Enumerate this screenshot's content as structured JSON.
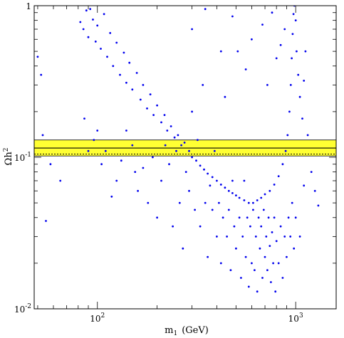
{
  "chart_data": {
    "type": "scatter",
    "title": "",
    "xlabel": "m",
    "xlabel_sub": "1",
    "xlabel_unit": "(GeV)",
    "ylabel": "Ωh",
    "ylabel_sup": "2",
    "x_scale": "log",
    "y_scale": "log",
    "xlim": [
      48,
      1600
    ],
    "ylim": [
      0.01,
      1
    ],
    "grid": false,
    "legend": "none",
    "x_ticks": [
      {
        "value": 100,
        "base": "10",
        "exp": "2"
      },
      {
        "value": 1000,
        "base": "10",
        "exp": "3"
      }
    ],
    "y_ticks": [
      {
        "value": 0.01,
        "base": "10",
        "exp": "-2"
      },
      {
        "value": 0.1,
        "base": "10",
        "exp": "-1"
      },
      {
        "value": 1,
        "base": "1",
        "exp": ""
      }
    ],
    "band": {
      "y_low": 0.102,
      "y_high": 0.13,
      "solid_line": 0.115,
      "dotted_line": 0.105,
      "color": "#ffff33"
    },
    "point_color": "#0000ee",
    "series": [
      {
        "points": [
          [
            50,
            0.46
          ],
          [
            52,
            0.35
          ],
          [
            53,
            0.14
          ],
          [
            55,
            0.038
          ],
          [
            58,
            0.09
          ],
          [
            65,
            0.07
          ],
          [
            82,
            0.78
          ],
          [
            85,
            0.7
          ],
          [
            88,
            0.93
          ],
          [
            90,
            0.62
          ],
          [
            92,
            0.95
          ],
          [
            95,
            0.81
          ],
          [
            98,
            0.58
          ],
          [
            100,
            0.74
          ],
          [
            104,
            0.52
          ],
          [
            108,
            0.88
          ],
          [
            112,
            0.46
          ],
          [
            116,
            0.66
          ],
          [
            120,
            0.4
          ],
          [
            125,
            0.57
          ],
          [
            130,
            0.35
          ],
          [
            136,
            0.49
          ],
          [
            140,
            0.31
          ],
          [
            145,
            0.42
          ],
          [
            150,
            0.28
          ],
          [
            158,
            0.36
          ],
          [
            165,
            0.24
          ],
          [
            170,
            0.3
          ],
          [
            178,
            0.21
          ],
          [
            185,
            0.26
          ],
          [
            192,
            0.19
          ],
          [
            200,
            0.22
          ],
          [
            210,
            0.17
          ],
          [
            218,
            0.19
          ],
          [
            225,
            0.15
          ],
          [
            235,
            0.16
          ],
          [
            245,
            0.135
          ],
          [
            255,
            0.14
          ],
          [
            265,
            0.12
          ],
          [
            275,
            0.125
          ],
          [
            290,
            0.11
          ],
          [
            300,
            0.1
          ],
          [
            315,
            0.095
          ],
          [
            330,
            0.088
          ],
          [
            345,
            0.083
          ],
          [
            360,
            0.078
          ],
          [
            380,
            0.074
          ],
          [
            400,
            0.07
          ],
          [
            420,
            0.066
          ],
          [
            440,
            0.063
          ],
          [
            460,
            0.06
          ],
          [
            480,
            0.058
          ],
          [
            500,
            0.056
          ],
          [
            520,
            0.054
          ],
          [
            550,
            0.052
          ],
          [
            580,
            0.05
          ],
          [
            610,
            0.05
          ],
          [
            640,
            0.052
          ],
          [
            670,
            0.054
          ],
          [
            700,
            0.057
          ],
          [
            740,
            0.06
          ],
          [
            780,
            0.066
          ],
          [
            820,
            0.075
          ],
          [
            860,
            0.09
          ],
          [
            890,
            0.11
          ],
          [
            910,
            0.14
          ],
          [
            930,
            0.2
          ],
          [
            945,
            0.3
          ],
          [
            955,
            0.45
          ],
          [
            965,
            0.65
          ],
          [
            975,
            0.88
          ],
          [
            985,
            1.0
          ],
          [
            1000,
            0.8
          ],
          [
            1010,
            0.5
          ],
          [
            1030,
            0.35
          ],
          [
            1050,
            0.25
          ],
          [
            1080,
            0.18
          ],
          [
            1100,
            0.32
          ],
          [
            1120,
            0.5
          ],
          [
            1150,
            0.14
          ],
          [
            1200,
            0.08
          ],
          [
            1250,
            0.06
          ],
          [
            1300,
            0.048
          ],
          [
            160,
            0.06
          ],
          [
            170,
            0.085
          ],
          [
            180,
            0.05
          ],
          [
            190,
            0.1
          ],
          [
            200,
            0.04
          ],
          [
            210,
            0.07
          ],
          [
            220,
            0.12
          ],
          [
            230,
            0.09
          ],
          [
            240,
            0.035
          ],
          [
            250,
            0.11
          ],
          [
            260,
            0.05
          ],
          [
            270,
            0.025
          ],
          [
            280,
            0.08
          ],
          [
            290,
            0.06
          ],
          [
            300,
            0.2
          ],
          [
            310,
            0.045
          ],
          [
            320,
            0.13
          ],
          [
            330,
            0.035
          ],
          [
            340,
            0.3
          ],
          [
            350,
            0.05
          ],
          [
            360,
            0.022
          ],
          [
            370,
            0.065
          ],
          [
            380,
            0.045
          ],
          [
            390,
            0.11
          ],
          [
            400,
            0.03
          ],
          [
            410,
            0.05
          ],
          [
            420,
            0.02
          ],
          [
            430,
            0.04
          ],
          [
            440,
            0.25
          ],
          [
            450,
            0.03
          ],
          [
            460,
            0.045
          ],
          [
            470,
            0.018
          ],
          [
            480,
            0.07
          ],
          [
            490,
            0.035
          ],
          [
            500,
            0.025
          ],
          [
            510,
            0.5
          ],
          [
            520,
            0.04
          ],
          [
            530,
            0.016
          ],
          [
            540,
            0.03
          ],
          [
            550,
            0.07
          ],
          [
            560,
            0.022
          ],
          [
            570,
            0.04
          ],
          [
            580,
            0.014
          ],
          [
            590,
            0.035
          ],
          [
            600,
            0.02
          ],
          [
            610,
            0.045
          ],
          [
            620,
            0.018
          ],
          [
            630,
            0.03
          ],
          [
            640,
            0.013
          ],
          [
            650,
            0.04
          ],
          [
            660,
            0.025
          ],
          [
            670,
            0.035
          ],
          [
            680,
            0.016
          ],
          [
            690,
            0.045
          ],
          [
            700,
            0.022
          ],
          [
            710,
            0.03
          ],
          [
            720,
            0.018
          ],
          [
            730,
            0.04
          ],
          [
            740,
            0.026
          ],
          [
            750,
            0.015
          ],
          [
            760,
            0.032
          ],
          [
            770,
            0.02
          ],
          [
            780,
            0.04
          ],
          [
            790,
            0.013
          ],
          [
            800,
            0.028
          ],
          [
            820,
            0.02
          ],
          [
            840,
            0.035
          ],
          [
            860,
            0.016
          ],
          [
            880,
            0.03
          ],
          [
            900,
            0.022
          ],
          [
            920,
            0.04
          ],
          [
            940,
            0.03
          ],
          [
            960,
            0.05
          ],
          [
            980,
            0.025
          ],
          [
            1000,
            0.04
          ],
          [
            1050,
            0.03
          ],
          [
            1100,
            0.065
          ],
          [
            300,
            0.7
          ],
          [
            350,
            0.95
          ],
          [
            420,
            0.5
          ],
          [
            480,
            0.85
          ],
          [
            560,
            0.38
          ],
          [
            600,
            0.6
          ],
          [
            680,
            0.75
          ],
          [
            720,
            0.3
          ],
          [
            760,
            0.9
          ],
          [
            800,
            0.45
          ],
          [
            840,
            0.55
          ],
          [
            880,
            0.7
          ],
          [
            140,
            0.15
          ],
          [
            150,
            0.12
          ],
          [
            155,
            0.08
          ],
          [
            132,
            0.095
          ],
          [
            125,
            0.07
          ],
          [
            118,
            0.055
          ],
          [
            110,
            0.11
          ],
          [
            105,
            0.09
          ],
          [
            100,
            0.15
          ],
          [
            96,
            0.13
          ],
          [
            90,
            0.11
          ],
          [
            86,
            0.18
          ]
        ]
      }
    ]
  }
}
